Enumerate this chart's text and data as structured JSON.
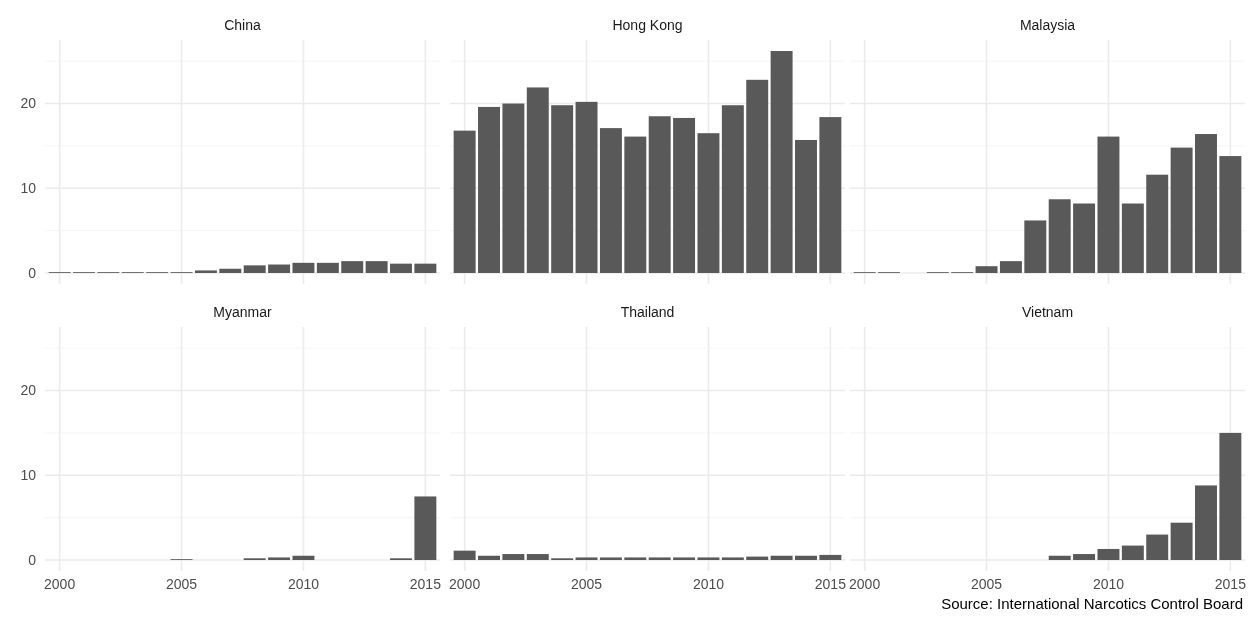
{
  "chart_data": [
    {
      "type": "bar",
      "title": "China",
      "x": [
        2000,
        2001,
        2002,
        2003,
        2004,
        2005,
        2006,
        2007,
        2008,
        2009,
        2010,
        2011,
        2012,
        2013,
        2014,
        2015
      ],
      "values": [
        0.1,
        0.1,
        0.1,
        0.1,
        0.1,
        0.1,
        0.3,
        0.5,
        0.9,
        1.0,
        1.2,
        1.2,
        1.4,
        1.4,
        1.1,
        1.1
      ],
      "color": "#595959",
      "xlim": [
        1999.4,
        2015.6
      ],
      "xticks": [
        2000,
        2005,
        2010,
        2015
      ],
      "ylim": [
        -1.3,
        27.5
      ],
      "yticks": [
        0,
        {
          "value": 5,
          "label": null
        },
        10,
        {
          "value": 15,
          "label": null
        },
        20,
        {
          "value": 25,
          "label": null
        }
      ],
      "grid": true,
      "tick_labels": "y"
    },
    {
      "type": "bar",
      "title": "Hong Kong",
      "x": [
        2000,
        2001,
        2002,
        2003,
        2004,
        2005,
        2006,
        2007,
        2008,
        2009,
        2010,
        2011,
        2012,
        2013,
        2014,
        2015
      ],
      "values": [
        16.8,
        19.6,
        20.0,
        21.9,
        19.8,
        20.2,
        17.1,
        16.1,
        18.5,
        18.3,
        16.5,
        19.8,
        22.8,
        26.2,
        15.7,
        18.4
      ],
      "color": "#595959",
      "xlim": [
        1999.4,
        2015.6
      ],
      "xticks": [
        2000,
        2005,
        2010,
        2015
      ],
      "ylim": [
        -1.3,
        27.5
      ],
      "yticks": [
        0,
        {
          "value": 5,
          "label": null
        },
        10,
        {
          "value": 15,
          "label": null
        },
        20,
        {
          "value": 25,
          "label": null
        }
      ],
      "grid": true,
      "tick_labels": false
    },
    {
      "type": "bar",
      "title": "Malaysia",
      "x": [
        2000,
        2001,
        2003,
        2004,
        2005,
        2006,
        2007,
        2008,
        2009,
        2010,
        2011,
        2012,
        2013,
        2014,
        2015
      ],
      "values": [
        0.1,
        0.1,
        0.1,
        0.1,
        0.8,
        1.4,
        6.2,
        8.7,
        8.2,
        16.1,
        8.2,
        11.6,
        14.8,
        16.4,
        13.8
      ],
      "color": "#595959",
      "xlim": [
        1999.4,
        2015.6
      ],
      "xticks": [
        2000,
        2005,
        2010,
        2015
      ],
      "ylim": [
        -1.3,
        27.5
      ],
      "yticks": [
        0,
        {
          "value": 5,
          "label": null
        },
        10,
        {
          "value": 15,
          "label": null
        },
        20,
        {
          "value": 25,
          "label": null
        }
      ],
      "grid": true,
      "tick_labels": false
    },
    {
      "type": "bar",
      "title": "Myanmar",
      "x": [
        2005,
        2008,
        2009,
        2010,
        2014,
        2015
      ],
      "values": [
        0.1,
        0.2,
        0.3,
        0.5,
        0.2,
        7.5
      ],
      "color": "#595959",
      "xlim": [
        1999.4,
        2015.6
      ],
      "xticks": [
        2000,
        2005,
        2010,
        2015
      ],
      "ylim": [
        -1.3,
        27.5
      ],
      "yticks": [
        0,
        {
          "value": 5,
          "label": null
        },
        10,
        {
          "value": 15,
          "label": null
        },
        20,
        {
          "value": 25,
          "label": null
        }
      ],
      "grid": true
    },
    {
      "type": "bar",
      "title": "Thailand",
      "x": [
        2000,
        2001,
        2002,
        2003,
        2004,
        2005,
        2006,
        2007,
        2008,
        2009,
        2010,
        2011,
        2012,
        2013,
        2014,
        2015
      ],
      "values": [
        1.1,
        0.5,
        0.7,
        0.7,
        0.2,
        0.3,
        0.3,
        0.3,
        0.3,
        0.3,
        0.3,
        0.3,
        0.4,
        0.5,
        0.5,
        0.6
      ],
      "color": "#595959",
      "xlim": [
        1999.4,
        2015.6
      ],
      "xticks": [
        2000,
        2005,
        2010,
        2015
      ],
      "ylim": [
        -1.3,
        27.5
      ],
      "yticks": [
        0,
        {
          "value": 5,
          "label": null
        },
        10,
        {
          "value": 15,
          "label": null
        },
        20,
        {
          "value": 25,
          "label": null
        }
      ],
      "grid": true,
      "tick_labels": "x"
    },
    {
      "type": "bar",
      "title": "Vietnam",
      "x": [
        2008,
        2009,
        2010,
        2011,
        2012,
        2013,
        2014,
        2015
      ],
      "values": [
        0.5,
        0.7,
        1.3,
        1.7,
        3.0,
        4.4,
        8.8,
        15.0
      ],
      "color": "#595959",
      "xlim": [
        1999.4,
        2015.6
      ],
      "xticks": [
        2000,
        2005,
        2010,
        2015
      ],
      "ylim": [
        -1.3,
        27.5
      ],
      "yticks": [
        0,
        {
          "value": 5,
          "label": null
        },
        10,
        {
          "value": 15,
          "label": null
        },
        20,
        {
          "value": 25,
          "label": null
        }
      ],
      "grid": true,
      "tick_labels": "x",
      "annotations": [
        "Source: International Narcotics Control Board"
      ]
    }
  ]
}
